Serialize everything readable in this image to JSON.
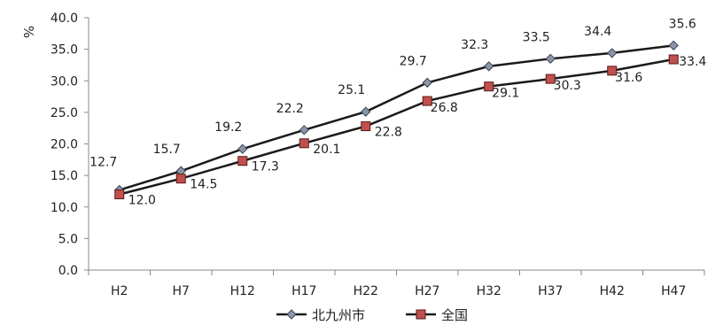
{
  "chart_data": {
    "type": "line",
    "title": "",
    "xlabel": "",
    "ylabel": "%",
    "ylim": [
      0,
      40
    ],
    "yticks": [
      "0.0",
      "5.0",
      "10.0",
      "15.0",
      "20.0",
      "25.0",
      "30.0",
      "35.0",
      "40.0"
    ],
    "categories": [
      "H2",
      "H7",
      "H12",
      "H17",
      "H22",
      "H27",
      "H32",
      "H37",
      "H42",
      "H47"
    ],
    "grid": false,
    "legend_position": "bottom",
    "series": [
      {
        "name": "北九州市",
        "values": [
          12.7,
          15.7,
          19.2,
          22.2,
          25.1,
          29.7,
          32.3,
          33.5,
          34.4,
          35.6
        ],
        "labels": [
          "12.7",
          "15.7",
          "19.2",
          "22.2",
          "25.1",
          "29.7",
          "32.3",
          "33.5",
          "34.4",
          "35.6"
        ],
        "color": "#1a1a1a",
        "marker": "diamond",
        "marker_color": "#8a96a8"
      },
      {
        "name": "全国",
        "values": [
          12.0,
          14.5,
          17.3,
          20.1,
          22.8,
          26.8,
          29.1,
          30.3,
          31.6,
          33.4
        ],
        "labels": [
          "12.0",
          "14.5",
          "17.3",
          "20.1",
          "22.8",
          "26.8",
          "29.1",
          "30.3",
          "31.6",
          "33.4"
        ],
        "color": "#1a1a1a",
        "marker": "square",
        "marker_color": "#c0504d"
      }
    ]
  }
}
